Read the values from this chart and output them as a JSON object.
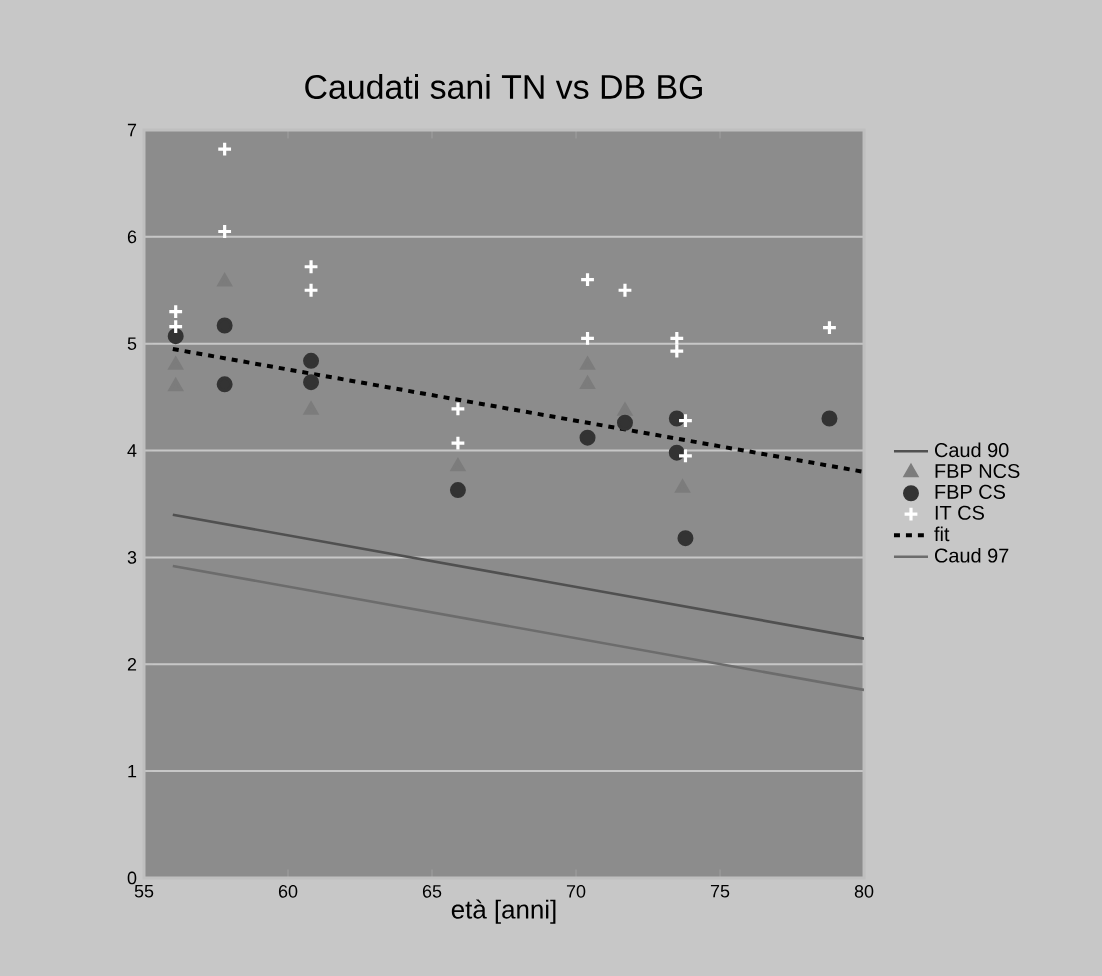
{
  "chart_data": {
    "type": "scatter",
    "title": "Caudati sani TN vs DB BG",
    "xlabel": "età [anni]",
    "xlim": [
      55,
      80
    ],
    "xticks": [
      55,
      60,
      65,
      70,
      75,
      80
    ],
    "ylim": [
      0,
      7
    ],
    "yticks": [
      0,
      1,
      2,
      3,
      4,
      5,
      6,
      7
    ],
    "grid": "y",
    "legend": "right",
    "series": [
      {
        "name": "Caud 90",
        "type": "line",
        "color": "#505050",
        "marker": "none",
        "line_style": "solid",
        "x": [
          56,
          80
        ],
        "values": [
          3.4,
          2.24
        ]
      },
      {
        "name": "FBP NCS",
        "color": "#7c7c7c",
        "marker": "triangle",
        "x": [
          56.1,
          56.1,
          57.8,
          60.8,
          65.9,
          70.4,
          70.4,
          71.7,
          73.7
        ],
        "values": [
          4.8,
          4.6,
          5.58,
          4.38,
          3.85,
          4.8,
          4.62,
          4.37,
          3.65
        ]
      },
      {
        "name": "FBP CS",
        "color": "#333333",
        "marker": "circle",
        "x": [
          56.1,
          57.8,
          57.8,
          60.8,
          60.8,
          65.9,
          70.4,
          71.7,
          73.5,
          73.5,
          73.8,
          78.8
        ],
        "values": [
          5.07,
          5.17,
          4.62,
          4.84,
          4.64,
          3.63,
          4.12,
          4.26,
          4.3,
          3.98,
          3.18,
          4.3
        ]
      },
      {
        "name": "IT CS",
        "color": "#ffffff",
        "marker": "cross",
        "x": [
          56.1,
          56.1,
          57.8,
          57.8,
          60.8,
          60.8,
          65.9,
          65.9,
          70.4,
          70.4,
          71.7,
          73.5,
          73.5,
          73.8,
          73.8,
          78.8
        ],
        "values": [
          5.3,
          5.16,
          6.82,
          6.05,
          5.72,
          5.5,
          4.39,
          4.07,
          5.6,
          5.05,
          5.5,
          5.05,
          4.93,
          4.28,
          3.95,
          5.15
        ]
      },
      {
        "name": "fit",
        "type": "line",
        "color": "#000000",
        "marker": "none",
        "line_style": "dashed",
        "x": [
          56,
          80
        ],
        "values": [
          4.95,
          3.8
        ]
      },
      {
        "name": "Caud 97",
        "type": "line",
        "color": "#6c6c6c",
        "marker": "none",
        "line_style": "solid",
        "x": [
          56,
          80
        ],
        "values": [
          2.92,
          1.76
        ]
      }
    ]
  }
}
